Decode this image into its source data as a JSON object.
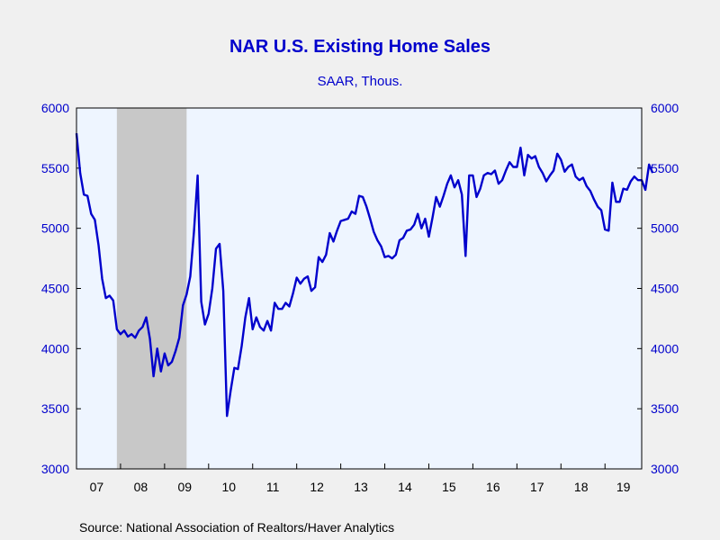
{
  "chart_data": {
    "type": "line",
    "title": "NAR U.S. Existing Home Sales",
    "subtitle": "SAAR, Thous.",
    "source": "Source:  National Association of Realtors/Haver Analytics",
    "ylim": [
      3000,
      6000
    ],
    "yticks": [
      3000,
      3500,
      4000,
      4500,
      5000,
      5500,
      6000
    ],
    "ytick_labels": [
      "3000",
      "3500",
      "4000",
      "4500",
      "5000",
      "5500",
      "6000"
    ],
    "y_axis_both_sides": true,
    "x_start": "2007-01",
    "x_end": "2019-11",
    "year_labels": [
      "07",
      "08",
      "09",
      "10",
      "11",
      "12",
      "13",
      "14",
      "15",
      "16",
      "17",
      "18",
      "19"
    ],
    "recession": {
      "start": "2007-12",
      "end": "2009-06"
    },
    "colors": {
      "line": "#0000cc",
      "plot_bg": "#eef5ff",
      "recession": "#c8c8c8",
      "text": "#0000cc"
    },
    "series": [
      {
        "values": [
          5790,
          5460,
          5280,
          5270,
          5120,
          5070,
          4860,
          4580,
          4420,
          4440,
          4400,
          4160,
          4120,
          4150,
          4100,
          4120,
          4090,
          4150,
          4180,
          4260,
          4080,
          3770,
          4000,
          3810,
          3960,
          3860,
          3890,
          3980,
          4090,
          4360,
          4450,
          4600,
          4970,
          5440,
          4390,
          4200,
          4290,
          4500,
          4830,
          4870,
          4480,
          3440,
          3650,
          3840,
          3830,
          4020,
          4260,
          4420,
          4160,
          4260,
          4180,
          4150,
          4230,
          4150,
          4380,
          4330,
          4330,
          4380,
          4350,
          4460,
          4590,
          4540,
          4580,
          4600,
          4480,
          4510,
          4760,
          4720,
          4780,
          4960,
          4890,
          4980,
          5060,
          5070,
          5080,
          5140,
          5120,
          5270,
          5260,
          5180,
          5080,
          4970,
          4900,
          4850,
          4760,
          4770,
          4750,
          4780,
          4900,
          4920,
          4980,
          4990,
          5030,
          5120,
          5000,
          5080,
          4930,
          5090,
          5260,
          5180,
          5270,
          5370,
          5440,
          5340,
          5400,
          5280,
          4770,
          5440,
          5440,
          5260,
          5330,
          5440,
          5460,
          5450,
          5480,
          5370,
          5400,
          5480,
          5550,
          5510,
          5510,
          5670,
          5440,
          5610,
          5580,
          5600,
          5510,
          5460,
          5390,
          5440,
          5480,
          5620,
          5570,
          5470,
          5510,
          5530,
          5430,
          5400,
          5420,
          5350,
          5310,
          5240,
          5180,
          5150,
          4990,
          4980,
          5380,
          5220,
          5220,
          5330,
          5320,
          5390,
          5430,
          5400,
          5400,
          5320,
          5530,
          5460
        ]
      }
    ]
  }
}
